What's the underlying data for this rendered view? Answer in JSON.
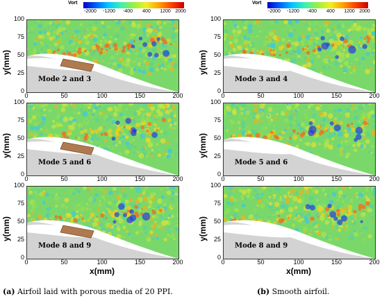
{
  "colorbar": {
    "title": "Vort",
    "ticks": [
      "-2000",
      "-1200",
      "-400",
      "400",
      "1200",
      "2000"
    ]
  },
  "axes": {
    "ylabel": "y(mm)",
    "xlabel": "x(mm)",
    "yticks": [
      "0",
      "25",
      "50",
      "75",
      "100"
    ],
    "xticks": [
      "0",
      "50",
      "100",
      "150",
      "200"
    ]
  },
  "columns": [
    {
      "caption_letter": "(a)",
      "caption_text": " Airfoil laid with porous media of 20 PPI.",
      "modes": [
        "Mode 2 and 3",
        "Mode 5 and 6",
        "Mode 8 and 9"
      ]
    },
    {
      "caption_letter": "(b)",
      "caption_text": " Smooth airfoil.",
      "modes": [
        "Mode 3 and 4",
        "Mode 5 and 6",
        "Mode 8 and 9"
      ]
    }
  ],
  "colors": {
    "field": "#7ad86a",
    "airfoil": "#d3d3d3",
    "porous": "#b07a50"
  }
}
